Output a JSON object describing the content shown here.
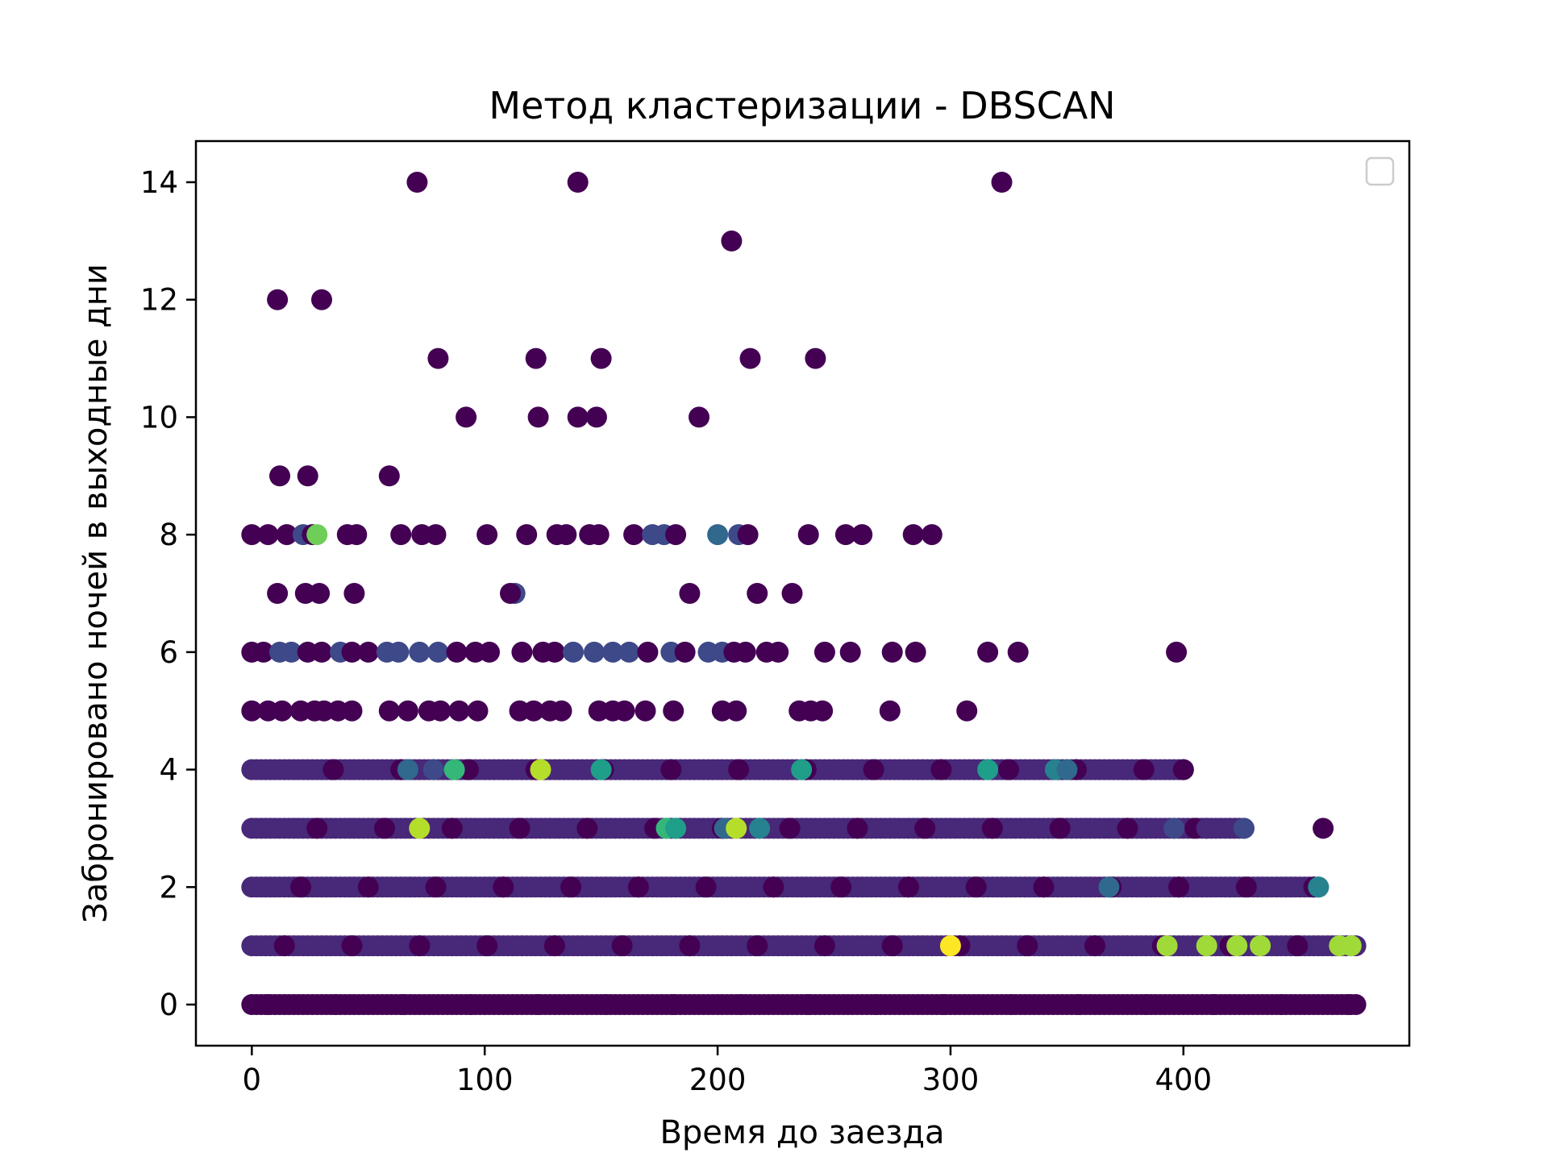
{
  "chart_data": {
    "type": "scatter",
    "title": "Метод кластеризации - DBSCAN",
    "xlabel": "Время до заезда",
    "ylabel": "Забронировано ночей в выходные дни",
    "xlim": [
      -24,
      497
    ],
    "ylim": [
      -0.7,
      14.7
    ],
    "xticks": [
      0,
      100,
      200,
      300,
      400
    ],
    "yticks": [
      0,
      2,
      4,
      6,
      8,
      10,
      12,
      14
    ],
    "legend": {
      "placement": "top-right",
      "entries": []
    },
    "grid": false,
    "colormap": "viridis",
    "colors": {
      "c0": "#440154",
      "c1": "#482878",
      "c2": "#3e4989",
      "c3": "#31688e",
      "c4": "#26828e",
      "c5": "#1f9e89",
      "c6": "#35b779",
      "c7": "#6ece58",
      "c8": "#b5de2b",
      "c9": "#fde725",
      "c10": "#a0da39"
    },
    "rows": [
      {
        "y": 0,
        "range": [
          0,
          474
        ],
        "cluster": 0
      },
      {
        "y": 1,
        "range": [
          0,
          474
        ],
        "cluster": 1
      },
      {
        "y": 2,
        "range": [
          0,
          458
        ],
        "cluster": 1
      },
      {
        "y": 3,
        "range": [
          0,
          426
        ],
        "cluster": 1
      },
      {
        "y": 4,
        "range": [
          0,
          400
        ],
        "cluster": 1
      }
    ],
    "points": [
      {
        "x": 71,
        "y": 14,
        "cluster": 0
      },
      {
        "x": 140,
        "y": 14,
        "cluster": 0
      },
      {
        "x": 322,
        "y": 14,
        "cluster": 0
      },
      {
        "x": 206,
        "y": 13,
        "cluster": 0
      },
      {
        "x": 11,
        "y": 12,
        "cluster": 0
      },
      {
        "x": 30,
        "y": 12,
        "cluster": 0
      },
      {
        "x": 80,
        "y": 11,
        "cluster": 0
      },
      {
        "x": 122,
        "y": 11,
        "cluster": 0
      },
      {
        "x": 150,
        "y": 11,
        "cluster": 0
      },
      {
        "x": 214,
        "y": 11,
        "cluster": 0
      },
      {
        "x": 242,
        "y": 11,
        "cluster": 0
      },
      {
        "x": 92,
        "y": 10,
        "cluster": 0
      },
      {
        "x": 123,
        "y": 10,
        "cluster": 0
      },
      {
        "x": 140,
        "y": 10,
        "cluster": 0
      },
      {
        "x": 148,
        "y": 10,
        "cluster": 0
      },
      {
        "x": 192,
        "y": 10,
        "cluster": 0
      },
      {
        "x": 12,
        "y": 9,
        "cluster": 0
      },
      {
        "x": 24,
        "y": 9,
        "cluster": 0
      },
      {
        "x": 59,
        "y": 9,
        "cluster": 0
      },
      {
        "x": 0,
        "y": 8,
        "cluster": 0
      },
      {
        "x": 7,
        "y": 8,
        "cluster": 0
      },
      {
        "x": 15,
        "y": 8,
        "cluster": 0
      },
      {
        "x": 22,
        "y": 8,
        "cluster": 2
      },
      {
        "x": 26,
        "y": 8,
        "cluster": 0
      },
      {
        "x": 28,
        "y": 8,
        "cluster": 7
      },
      {
        "x": 41,
        "y": 8,
        "cluster": 0
      },
      {
        "x": 45,
        "y": 8,
        "cluster": 0
      },
      {
        "x": 64,
        "y": 8,
        "cluster": 0
      },
      {
        "x": 73,
        "y": 8,
        "cluster": 0
      },
      {
        "x": 79,
        "y": 8,
        "cluster": 0
      },
      {
        "x": 101,
        "y": 8,
        "cluster": 0
      },
      {
        "x": 118,
        "y": 8,
        "cluster": 0
      },
      {
        "x": 131,
        "y": 8,
        "cluster": 0
      },
      {
        "x": 135,
        "y": 8,
        "cluster": 0
      },
      {
        "x": 145,
        "y": 8,
        "cluster": 0
      },
      {
        "x": 149,
        "y": 8,
        "cluster": 0
      },
      {
        "x": 164,
        "y": 8,
        "cluster": 0
      },
      {
        "x": 172,
        "y": 8,
        "cluster": 2
      },
      {
        "x": 177,
        "y": 8,
        "cluster": 2
      },
      {
        "x": 182,
        "y": 8,
        "cluster": 0
      },
      {
        "x": 200,
        "y": 8,
        "cluster": 3
      },
      {
        "x": 209,
        "y": 8,
        "cluster": 2
      },
      {
        "x": 213,
        "y": 8,
        "cluster": 0
      },
      {
        "x": 239,
        "y": 8,
        "cluster": 0
      },
      {
        "x": 255,
        "y": 8,
        "cluster": 0
      },
      {
        "x": 262,
        "y": 8,
        "cluster": 0
      },
      {
        "x": 284,
        "y": 8,
        "cluster": 0
      },
      {
        "x": 292,
        "y": 8,
        "cluster": 0
      },
      {
        "x": 11,
        "y": 7,
        "cluster": 0
      },
      {
        "x": 23,
        "y": 7,
        "cluster": 0
      },
      {
        "x": 29,
        "y": 7,
        "cluster": 0
      },
      {
        "x": 44,
        "y": 7,
        "cluster": 0
      },
      {
        "x": 113,
        "y": 7,
        "cluster": 2
      },
      {
        "x": 111,
        "y": 7,
        "cluster": 0
      },
      {
        "x": 188,
        "y": 7,
        "cluster": 0
      },
      {
        "x": 217,
        "y": 7,
        "cluster": 0
      },
      {
        "x": 232,
        "y": 7,
        "cluster": 0
      },
      {
        "x": 0,
        "y": 6,
        "cluster": 0
      },
      {
        "x": 5,
        "y": 6,
        "cluster": 0
      },
      {
        "x": 12,
        "y": 6,
        "cluster": 2
      },
      {
        "x": 17,
        "y": 6,
        "cluster": 2
      },
      {
        "x": 24,
        "y": 6,
        "cluster": 0
      },
      {
        "x": 30,
        "y": 6,
        "cluster": 0
      },
      {
        "x": 38,
        "y": 6,
        "cluster": 2
      },
      {
        "x": 43,
        "y": 6,
        "cluster": 0
      },
      {
        "x": 50,
        "y": 6,
        "cluster": 0
      },
      {
        "x": 58,
        "y": 6,
        "cluster": 2
      },
      {
        "x": 63,
        "y": 6,
        "cluster": 2
      },
      {
        "x": 72,
        "y": 6,
        "cluster": 2
      },
      {
        "x": 80,
        "y": 6,
        "cluster": 2
      },
      {
        "x": 88,
        "y": 6,
        "cluster": 0
      },
      {
        "x": 96,
        "y": 6,
        "cluster": 0
      },
      {
        "x": 102,
        "y": 6,
        "cluster": 0
      },
      {
        "x": 116,
        "y": 6,
        "cluster": 0
      },
      {
        "x": 125,
        "y": 6,
        "cluster": 0
      },
      {
        "x": 130,
        "y": 6,
        "cluster": 0
      },
      {
        "x": 138,
        "y": 6,
        "cluster": 2
      },
      {
        "x": 147,
        "y": 6,
        "cluster": 2
      },
      {
        "x": 155,
        "y": 6,
        "cluster": 2
      },
      {
        "x": 162,
        "y": 6,
        "cluster": 2
      },
      {
        "x": 170,
        "y": 6,
        "cluster": 0
      },
      {
        "x": 180,
        "y": 6,
        "cluster": 2
      },
      {
        "x": 186,
        "y": 6,
        "cluster": 0
      },
      {
        "x": 196,
        "y": 6,
        "cluster": 2
      },
      {
        "x": 202,
        "y": 6,
        "cluster": 2
      },
      {
        "x": 207,
        "y": 6,
        "cluster": 0
      },
      {
        "x": 212,
        "y": 6,
        "cluster": 0
      },
      {
        "x": 221,
        "y": 6,
        "cluster": 0
      },
      {
        "x": 226,
        "y": 6,
        "cluster": 0
      },
      {
        "x": 246,
        "y": 6,
        "cluster": 0
      },
      {
        "x": 257,
        "y": 6,
        "cluster": 0
      },
      {
        "x": 275,
        "y": 6,
        "cluster": 0
      },
      {
        "x": 285,
        "y": 6,
        "cluster": 0
      },
      {
        "x": 316,
        "y": 6,
        "cluster": 0
      },
      {
        "x": 329,
        "y": 6,
        "cluster": 0
      },
      {
        "x": 397,
        "y": 6,
        "cluster": 0
      },
      {
        "x": 0,
        "y": 5,
        "cluster": 0
      },
      {
        "x": 7,
        "y": 5,
        "cluster": 0
      },
      {
        "x": 13,
        "y": 5,
        "cluster": 0
      },
      {
        "x": 21,
        "y": 5,
        "cluster": 0
      },
      {
        "x": 27,
        "y": 5,
        "cluster": 0
      },
      {
        "x": 31,
        "y": 5,
        "cluster": 0
      },
      {
        "x": 37,
        "y": 5,
        "cluster": 0
      },
      {
        "x": 43,
        "y": 5,
        "cluster": 0
      },
      {
        "x": 59,
        "y": 5,
        "cluster": 0
      },
      {
        "x": 67,
        "y": 5,
        "cluster": 0
      },
      {
        "x": 76,
        "y": 5,
        "cluster": 0
      },
      {
        "x": 81,
        "y": 5,
        "cluster": 0
      },
      {
        "x": 89,
        "y": 5,
        "cluster": 0
      },
      {
        "x": 97,
        "y": 5,
        "cluster": 0
      },
      {
        "x": 115,
        "y": 5,
        "cluster": 0
      },
      {
        "x": 121,
        "y": 5,
        "cluster": 0
      },
      {
        "x": 128,
        "y": 5,
        "cluster": 0
      },
      {
        "x": 133,
        "y": 5,
        "cluster": 0
      },
      {
        "x": 149,
        "y": 5,
        "cluster": 0
      },
      {
        "x": 155,
        "y": 5,
        "cluster": 0
      },
      {
        "x": 160,
        "y": 5,
        "cluster": 0
      },
      {
        "x": 169,
        "y": 5,
        "cluster": 0
      },
      {
        "x": 181,
        "y": 5,
        "cluster": 0
      },
      {
        "x": 202,
        "y": 5,
        "cluster": 0
      },
      {
        "x": 208,
        "y": 5,
        "cluster": 0
      },
      {
        "x": 235,
        "y": 5,
        "cluster": 0
      },
      {
        "x": 240,
        "y": 5,
        "cluster": 0
      },
      {
        "x": 245,
        "y": 5,
        "cluster": 0
      },
      {
        "x": 274,
        "y": 5,
        "cluster": 0
      },
      {
        "x": 307,
        "y": 5,
        "cluster": 0
      },
      {
        "x": 67,
        "y": 4,
        "cluster": 3
      },
      {
        "x": 78,
        "y": 4,
        "cluster": 2
      },
      {
        "x": 87,
        "y": 4,
        "cluster": 6
      },
      {
        "x": 124,
        "y": 4,
        "cluster": 8
      },
      {
        "x": 150,
        "y": 4,
        "cluster": 5
      },
      {
        "x": 236,
        "y": 4,
        "cluster": 5
      },
      {
        "x": 316,
        "y": 4,
        "cluster": 5
      },
      {
        "x": 345,
        "y": 4,
        "cluster": 4
      },
      {
        "x": 350,
        "y": 4,
        "cluster": 3
      },
      {
        "x": 400,
        "y": 4,
        "cluster": 0
      },
      {
        "x": 72,
        "y": 3,
        "cluster": 8
      },
      {
        "x": 178,
        "y": 3,
        "cluster": 6
      },
      {
        "x": 182,
        "y": 3,
        "cluster": 5
      },
      {
        "x": 203,
        "y": 3,
        "cluster": 3
      },
      {
        "x": 208,
        "y": 3,
        "cluster": 8
      },
      {
        "x": 218,
        "y": 3,
        "cluster": 4
      },
      {
        "x": 396,
        "y": 3,
        "cluster": 2
      },
      {
        "x": 410,
        "y": 3,
        "cluster": 1
      },
      {
        "x": 426,
        "y": 3,
        "cluster": 2
      },
      {
        "x": 460,
        "y": 3,
        "cluster": 0
      },
      {
        "x": 368,
        "y": 2,
        "cluster": 3
      },
      {
        "x": 458,
        "y": 2,
        "cluster": 4
      },
      {
        "x": 300,
        "y": 1,
        "cluster": 9
      },
      {
        "x": 393,
        "y": 1,
        "cluster": 10
      },
      {
        "x": 410,
        "y": 1,
        "cluster": 10
      },
      {
        "x": 423,
        "y": 1,
        "cluster": 10
      },
      {
        "x": 433,
        "y": 1,
        "cluster": 10
      },
      {
        "x": 467,
        "y": 1,
        "cluster": 10
      },
      {
        "x": 472,
        "y": 1,
        "cluster": 10
      }
    ]
  }
}
